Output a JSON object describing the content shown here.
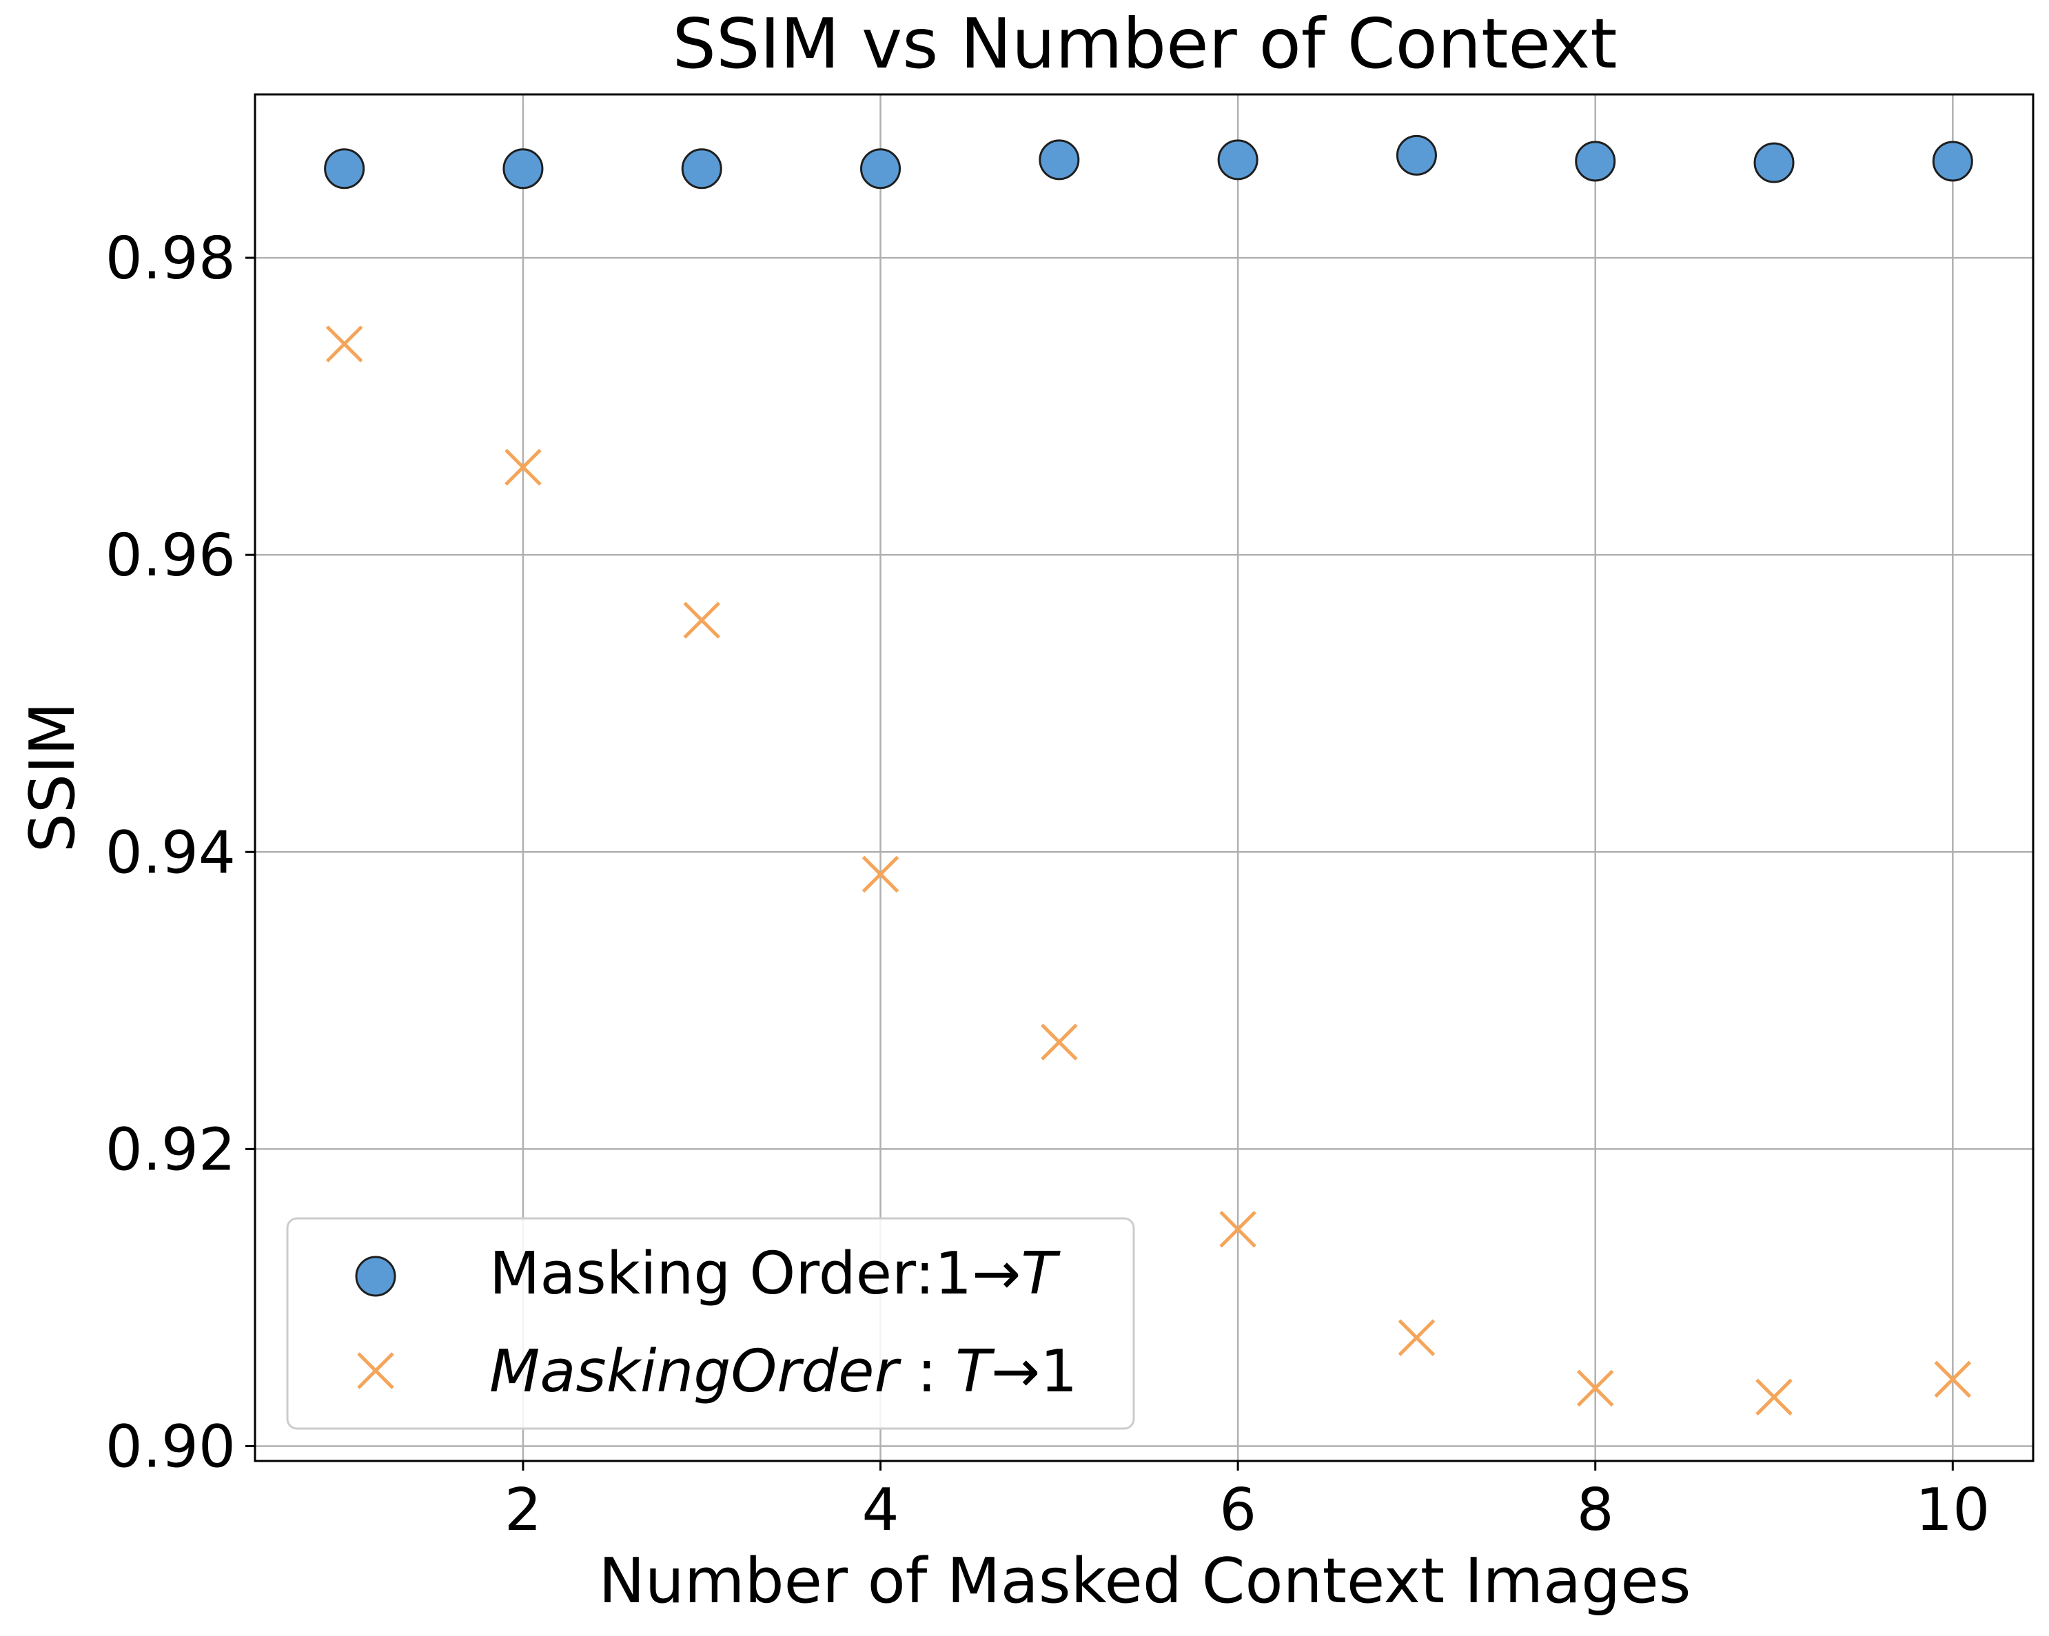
{
  "chart_data": {
    "type": "scatter",
    "title": "SSIM vs Number of Context",
    "xlabel": "Number of Masked Context Images",
    "ylabel": "SSIM",
    "xlim": [
      0.5,
      10.45
    ],
    "ylim": [
      0.899,
      0.991
    ],
    "xticks": [
      2,
      4,
      6,
      8,
      10
    ],
    "xtick_labels": [
      "2",
      "4",
      "6",
      "8",
      "10"
    ],
    "yticks": [
      0.9,
      0.92,
      0.94,
      0.96,
      0.98
    ],
    "ytick_labels": [
      "0.90",
      "0.92",
      "0.94",
      "0.96",
      "0.98"
    ],
    "grid": true,
    "legend_position": "lower-left",
    "x": [
      1,
      2,
      3,
      4,
      5,
      6,
      7,
      8,
      9,
      10
    ],
    "series": [
      {
        "name_prefix": "Masking Order:1→",
        "name_italic": "T",
        "marker": "circle",
        "color": "#5b9bd5",
        "edge_color": "#1f1f1f",
        "values": [
          0.986,
          0.986,
          0.986,
          0.986,
          0.9866,
          0.9866,
          0.9869,
          0.9865,
          0.9864,
          0.9865
        ]
      },
      {
        "name_prefix": "MaskingOrder",
        "name_colon": " : ",
        "name_italic": "T",
        "name_suffix": "→1",
        "marker": "x",
        "color": "#f5a55a",
        "values": [
          0.9742,
          0.9659,
          0.9556,
          0.9385,
          0.9272,
          0.9146,
          0.9073,
          0.9039,
          0.9033,
          0.9045
        ]
      }
    ]
  }
}
